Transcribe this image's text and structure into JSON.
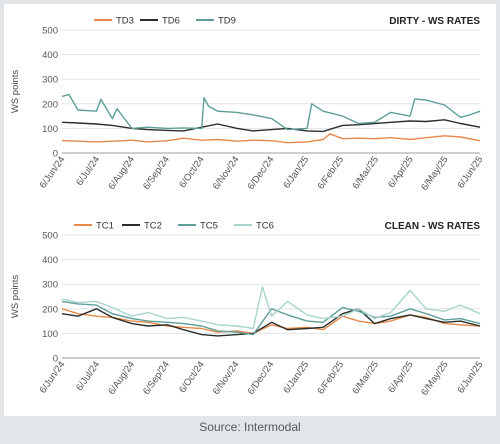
{
  "source": "Source: Intermodal",
  "chart_data": [
    {
      "type": "line",
      "title": "DIRTY - WS RATES",
      "ylabel": "WS points",
      "xlabel": "",
      "ylim": [
        0,
        500
      ],
      "yticks": [
        0,
        100,
        200,
        300,
        400,
        500
      ],
      "xlim": [
        "2024-06-06",
        "2025-06-06"
      ],
      "xtick_labels": [
        "6/Jun/24",
        "6/Jul/24",
        "6/Aug/24",
        "6/Sep/24",
        "6/Oct/24",
        "6/Nov/24",
        "6/Dec/24",
        "6/Jan/25",
        "6/Feb/25",
        "6/Mar/25",
        "6/Apr/25",
        "6/May/25",
        "6/Jun/25"
      ],
      "grid": "horizontal",
      "legend": "top-left",
      "series": [
        {
          "name": "TD3",
          "color": "#e8894a",
          "x": [
            "2024-06-06",
            "2024-06-20",
            "2024-07-06",
            "2024-07-20",
            "2024-08-06",
            "2024-08-20",
            "2024-09-06",
            "2024-09-20",
            "2024-10-06",
            "2024-10-20",
            "2024-11-06",
            "2024-11-20",
            "2024-12-06",
            "2024-12-20",
            "2025-01-06",
            "2025-01-20",
            "2025-01-26",
            "2025-02-06",
            "2025-02-20",
            "2025-03-06",
            "2025-03-20",
            "2025-04-06",
            "2025-04-20",
            "2025-05-06",
            "2025-05-20",
            "2025-06-06"
          ],
          "y": [
            50,
            48,
            45,
            48,
            52,
            45,
            50,
            60,
            52,
            55,
            48,
            52,
            50,
            42,
            45,
            55,
            78,
            58,
            60,
            58,
            62,
            55,
            62,
            70,
            65,
            50
          ]
        },
        {
          "name": "TD6",
          "color": "#2a2e2a",
          "x": [
            "2024-06-06",
            "2024-06-20",
            "2024-07-06",
            "2024-07-20",
            "2024-08-06",
            "2024-08-20",
            "2024-09-06",
            "2024-09-20",
            "2024-10-06",
            "2024-10-20",
            "2024-11-06",
            "2024-11-20",
            "2024-12-06",
            "2024-12-20",
            "2025-01-06",
            "2025-01-20",
            "2025-02-06",
            "2025-02-20",
            "2025-03-06",
            "2025-03-20",
            "2025-04-06",
            "2025-04-20",
            "2025-05-06",
            "2025-05-20",
            "2025-06-06"
          ],
          "y": [
            125,
            122,
            118,
            112,
            100,
            95,
            92,
            90,
            105,
            118,
            100,
            90,
            95,
            100,
            90,
            88,
            112,
            115,
            120,
            125,
            130,
            128,
            135,
            120,
            105
          ]
        },
        {
          "name": "TD9",
          "color": "#5f9e98",
          "x": [
            "2024-06-06",
            "2024-06-12",
            "2024-06-20",
            "2024-07-06",
            "2024-07-10",
            "2024-07-20",
            "2024-07-24",
            "2024-08-06",
            "2024-08-20",
            "2024-09-06",
            "2024-09-20",
            "2024-10-06",
            "2024-10-08",
            "2024-10-12",
            "2024-10-20",
            "2024-11-06",
            "2024-11-20",
            "2024-12-06",
            "2024-12-20",
            "2025-01-06",
            "2025-01-10",
            "2025-01-20",
            "2025-02-06",
            "2025-02-20",
            "2025-03-06",
            "2025-03-20",
            "2025-04-06",
            "2025-04-10",
            "2025-04-20",
            "2025-05-06",
            "2025-05-20",
            "2025-05-28",
            "2025-06-06"
          ],
          "y": [
            230,
            238,
            175,
            170,
            218,
            140,
            180,
            100,
            105,
            100,
            102,
            100,
            225,
            190,
            170,
            165,
            155,
            140,
            95,
            100,
            200,
            170,
            150,
            120,
            125,
            165,
            150,
            220,
            215,
            195,
            145,
            155,
            170
          ]
        }
      ]
    },
    {
      "type": "line",
      "title": "CLEAN - WS RATES",
      "ylabel": "WS points",
      "xlabel": "",
      "ylim": [
        0,
        500
      ],
      "yticks": [
        0,
        100,
        200,
        300,
        400,
        500
      ],
      "xlim": [
        "2024-06-06",
        "2025-06-06"
      ],
      "xtick_labels": [
        "6/Jun/24",
        "6/Jul/24",
        "6/Aug/24",
        "6/Sep/24",
        "6/Oct/24",
        "6/Nov/24",
        "6/Dec/24",
        "6/Jan/25",
        "6/Feb/25",
        "6/Mar/25",
        "6/Apr/25",
        "6/May/25",
        "6/Jun/25"
      ],
      "grid": "horizontal",
      "legend": "top-left",
      "series": [
        {
          "name": "TC1",
          "color": "#e8894a",
          "x": [
            "2024-06-06",
            "2024-06-20",
            "2024-07-06",
            "2024-07-20",
            "2024-08-06",
            "2024-08-20",
            "2024-09-06",
            "2024-09-20",
            "2024-10-06",
            "2024-10-20",
            "2024-11-06",
            "2024-11-20",
            "2024-12-06",
            "2024-12-20",
            "2025-01-06",
            "2025-01-20",
            "2025-02-06",
            "2025-02-20",
            "2025-03-06",
            "2025-03-20",
            "2025-04-06",
            "2025-04-20",
            "2025-05-06",
            "2025-05-20",
            "2025-06-06"
          ],
          "y": [
            200,
            180,
            170,
            165,
            150,
            145,
            130,
            125,
            120,
            105,
            110,
            100,
            135,
            120,
            125,
            115,
            170,
            150,
            140,
            150,
            175,
            165,
            140,
            135,
            130
          ]
        },
        {
          "name": "TC2",
          "color": "#2a2e2a",
          "x": [
            "2024-06-06",
            "2024-06-20",
            "2024-07-06",
            "2024-07-20",
            "2024-08-06",
            "2024-08-20",
            "2024-09-06",
            "2024-09-20",
            "2024-10-06",
            "2024-10-20",
            "2024-11-06",
            "2024-11-20",
            "2024-12-06",
            "2024-12-20",
            "2025-01-06",
            "2025-01-20",
            "2025-02-06",
            "2025-02-20",
            "2025-03-06",
            "2025-03-20",
            "2025-04-06",
            "2025-04-20",
            "2025-05-06",
            "2025-05-20",
            "2025-06-06"
          ],
          "y": [
            180,
            170,
            200,
            165,
            140,
            130,
            135,
            115,
            95,
            90,
            95,
            100,
            145,
            115,
            120,
            125,
            180,
            200,
            140,
            160,
            175,
            160,
            145,
            150,
            130
          ]
        },
        {
          "name": "TC5",
          "color": "#5f9e98",
          "x": [
            "2024-06-06",
            "2024-06-20",
            "2024-07-06",
            "2024-07-20",
            "2024-08-06",
            "2024-08-20",
            "2024-09-06",
            "2024-09-20",
            "2024-10-06",
            "2024-10-20",
            "2024-11-06",
            "2024-11-20",
            "2024-12-06",
            "2024-12-20",
            "2025-01-06",
            "2025-01-20",
            "2025-02-06",
            "2025-02-20",
            "2025-03-06",
            "2025-03-20",
            "2025-04-06",
            "2025-04-20",
            "2025-05-06",
            "2025-05-20",
            "2025-06-06"
          ],
          "y": [
            230,
            220,
            215,
            180,
            160,
            150,
            145,
            140,
            130,
            110,
            105,
            95,
            200,
            175,
            150,
            145,
            205,
            190,
            165,
            170,
            200,
            180,
            155,
            160,
            140
          ]
        },
        {
          "name": "TC6",
          "color": "#a9d3cc",
          "x": [
            "2024-06-06",
            "2024-06-20",
            "2024-07-06",
            "2024-07-20",
            "2024-08-06",
            "2024-08-20",
            "2024-09-06",
            "2024-09-20",
            "2024-10-06",
            "2024-10-20",
            "2024-11-06",
            "2024-11-20",
            "2024-11-28",
            "2024-12-06",
            "2024-12-20",
            "2025-01-06",
            "2025-01-20",
            "2025-02-06",
            "2025-02-20",
            "2025-03-06",
            "2025-03-20",
            "2025-04-06",
            "2025-04-20",
            "2025-05-06",
            "2025-05-20",
            "2025-06-06"
          ],
          "y": [
            240,
            225,
            230,
            205,
            170,
            185,
            160,
            165,
            150,
            135,
            130,
            120,
            290,
            170,
            230,
            175,
            160,
            170,
            200,
            160,
            185,
            275,
            200,
            190,
            215,
            180
          ]
        }
      ]
    }
  ]
}
